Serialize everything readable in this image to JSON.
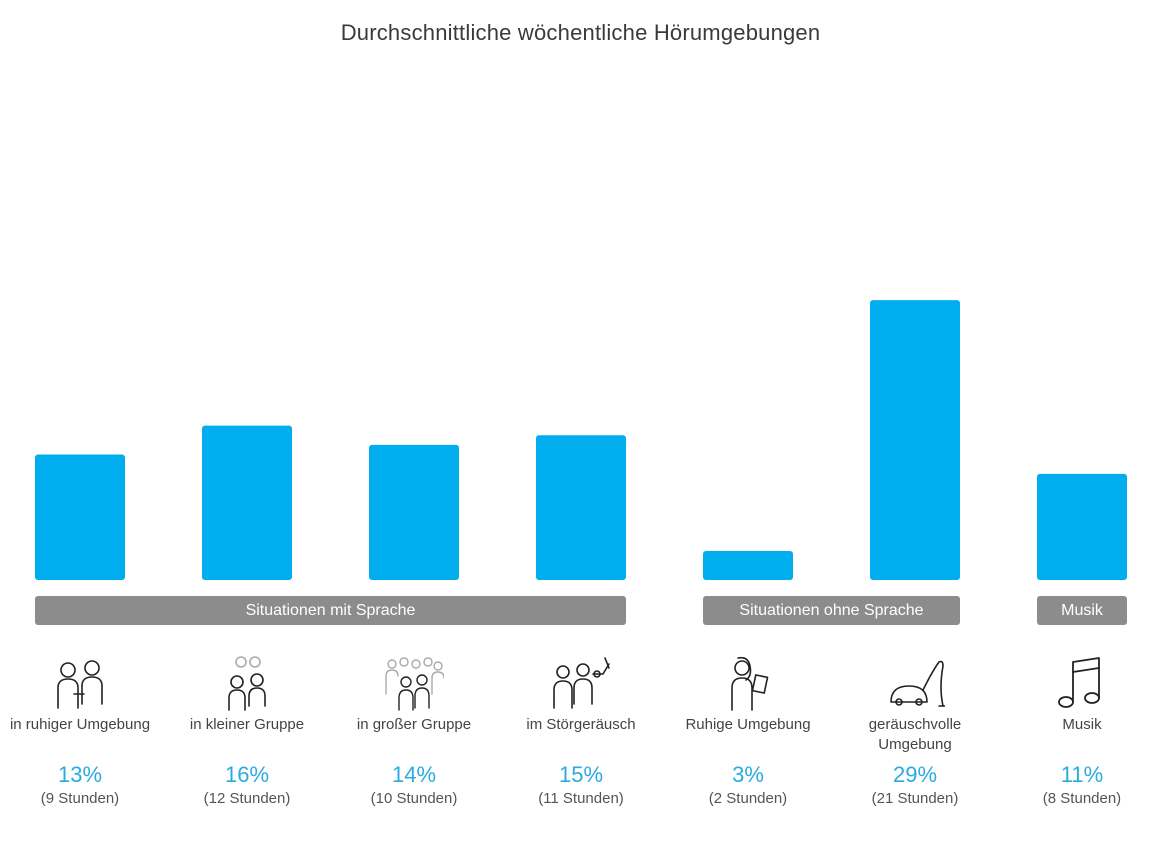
{
  "chart_data": {
    "type": "bar",
    "title": "Durchschnittliche wöchentliche Hörumgebungen",
    "categories": [
      "in ruhiger Umgebung",
      "in kleiner Gruppe",
      "in großer Gruppe",
      "im Störgeräusch",
      "Ruhige Umgebung",
      "geräuschvolle Umgebung",
      "Musik"
    ],
    "values": [
      13,
      16,
      14,
      15,
      3,
      29,
      11
    ],
    "percent_labels": [
      "13%",
      "16%",
      "14%",
      "15%",
      "3%",
      "29%",
      "11%"
    ],
    "hours_labels": [
      "(9 Stunden)",
      "(12 Stunden)",
      "(10 Stunden)",
      "(11 Stunden)",
      "(2 Stunden)",
      "(21 Stunden)",
      "(8 Stunden)"
    ],
    "groups": [
      {
        "label": "Situationen mit Sprache",
        "members": [
          0,
          1,
          2,
          3
        ]
      },
      {
        "label": "Situationen ohne Sprache",
        "members": [
          4,
          5
        ]
      },
      {
        "label": "Musik",
        "members": [
          6
        ]
      }
    ],
    "icons": [
      "two-people-talking-icon",
      "small-group-icon",
      "large-group-icon",
      "people-with-noise-icon",
      "person-reading-icon",
      "vacuum-cleaner-icon",
      "music-note-icon"
    ],
    "bar_color": "#00aeef",
    "group_bar_color": "#8c8c8c",
    "percent_color": "#29abe2",
    "grid": false,
    "legend": "none"
  }
}
